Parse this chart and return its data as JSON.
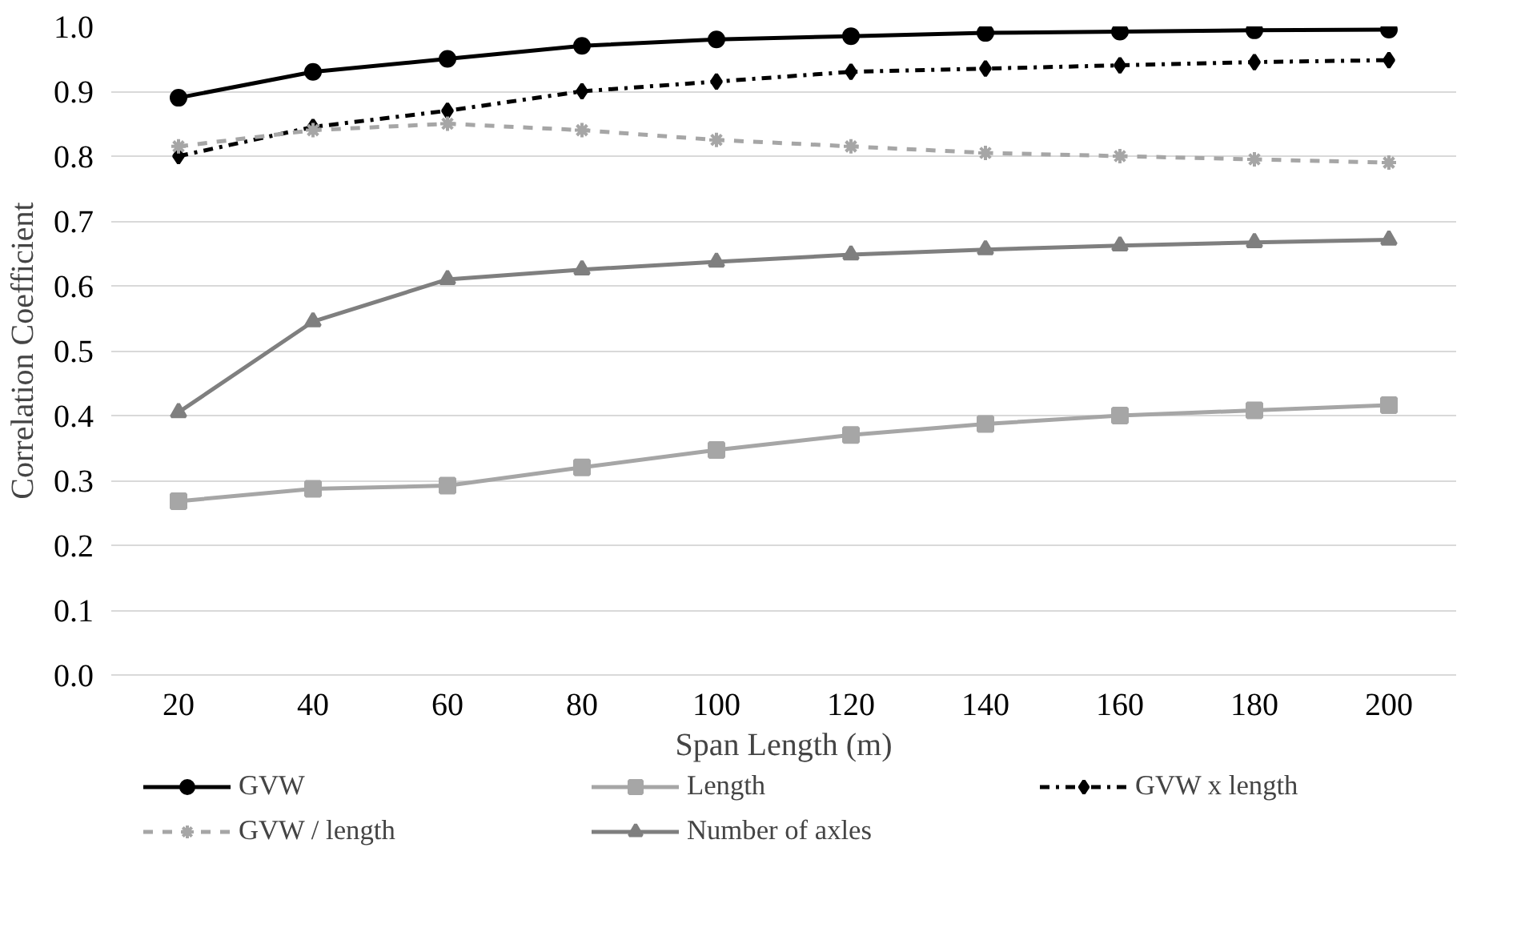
{
  "chart_data": {
    "type": "line",
    "xlabel": "Span Length (m)",
    "ylabel": "Correlation Coefficient",
    "categories": [
      "20",
      "40",
      "60",
      "80",
      "100",
      "120",
      "140",
      "160",
      "180",
      "200"
    ],
    "ylim": [
      0,
      1.0
    ],
    "yticks": [
      {
        "value": 0,
        "label": "0.0"
      },
      {
        "value": 0.1,
        "label": "0.1"
      },
      {
        "value": 0.2,
        "label": "0.2"
      },
      {
        "value": 0.3,
        "label": "0.3"
      },
      {
        "value": 0.4,
        "label": "0.4"
      },
      {
        "value": 0.5,
        "label": "0.5"
      },
      {
        "value": 0.6,
        "label": "0.6"
      },
      {
        "value": 0.7,
        "label": "0.7"
      },
      {
        "value": 0.8,
        "label": "0.8"
      },
      {
        "value": 0.9,
        "label": "0.9"
      },
      {
        "value": 1.0,
        "label": "1.0"
      }
    ],
    "grid": "y",
    "legend": "bottom",
    "series": [
      {
        "name": "GVW",
        "color": "#000000",
        "marker": "circle",
        "line_style": "solid",
        "values": [
          0.89,
          0.93,
          0.95,
          0.97,
          0.98,
          0.985,
          0.99,
          0.992,
          0.994,
          0.995
        ]
      },
      {
        "name": "Length",
        "color": "#a6a6a6",
        "marker": "square",
        "line_style": "solid",
        "values": [
          0.268,
          0.287,
          0.292,
          0.32,
          0.347,
          0.37,
          0.387,
          0.4,
          0.408,
          0.416
        ]
      },
      {
        "name": "GVW x length",
        "color": "#000000",
        "marker": "diamond",
        "line_style": "dashdot",
        "values": [
          0.8,
          0.845,
          0.87,
          0.9,
          0.915,
          0.93,
          0.935,
          0.94,
          0.945,
          0.948
        ]
      },
      {
        "name": "GVW / length",
        "color": "#a6a6a6",
        "marker": "cross",
        "line_style": "dashed",
        "values": [
          0.815,
          0.84,
          0.85,
          0.84,
          0.825,
          0.815,
          0.805,
          0.8,
          0.795,
          0.79
        ]
      },
      {
        "name": "Number of axles",
        "color": "#7f7f7f",
        "marker": "triangle",
        "line_style": "solid",
        "values": [
          0.405,
          0.545,
          0.61,
          0.625,
          0.637,
          0.648,
          0.656,
          0.662,
          0.667,
          0.671
        ]
      }
    ]
  }
}
